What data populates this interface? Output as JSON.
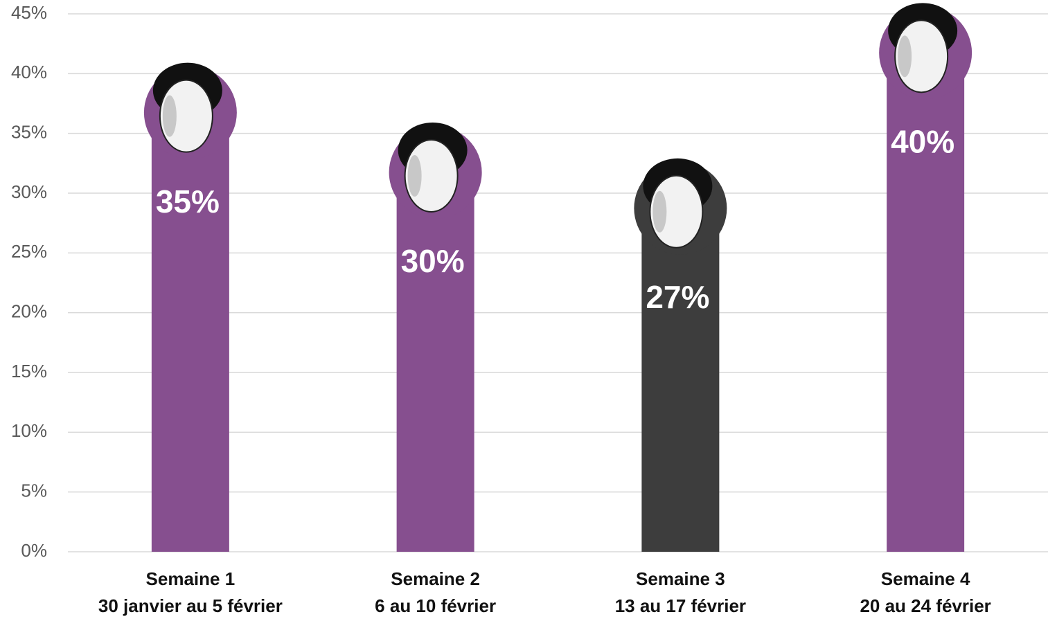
{
  "chart_data": {
    "type": "bar",
    "categories": [
      [
        "Semaine 1",
        "30 janvier au 5 février"
      ],
      [
        "Semaine 2",
        "6 au 10 février"
      ],
      [
        "Semaine 3",
        "13 au 17 février"
      ],
      [
        "Semaine 4",
        "20 au 24 février"
      ]
    ],
    "values": [
      35,
      30,
      27,
      40
    ],
    "value_labels": [
      "35%",
      "30%",
      "27%",
      "40%"
    ],
    "colors": [
      "#864f8f",
      "#864f8f",
      "#3d3d3d",
      "#864f8f"
    ],
    "ylim": [
      0,
      45
    ],
    "yticks": [
      {
        "value": 0,
        "label": "0%"
      },
      {
        "value": 5,
        "label": "5%"
      },
      {
        "value": 10,
        "label": "10%"
      },
      {
        "value": 15,
        "label": "15%"
      },
      {
        "value": 20,
        "label": "20%"
      },
      {
        "value": 25,
        "label": "25%"
      },
      {
        "value": 30,
        "label": "30%"
      },
      {
        "value": 35,
        "label": "35%"
      },
      {
        "value": 40,
        "label": "40%"
      },
      {
        "value": 45,
        "label": "45%"
      }
    ],
    "grid": true
  }
}
